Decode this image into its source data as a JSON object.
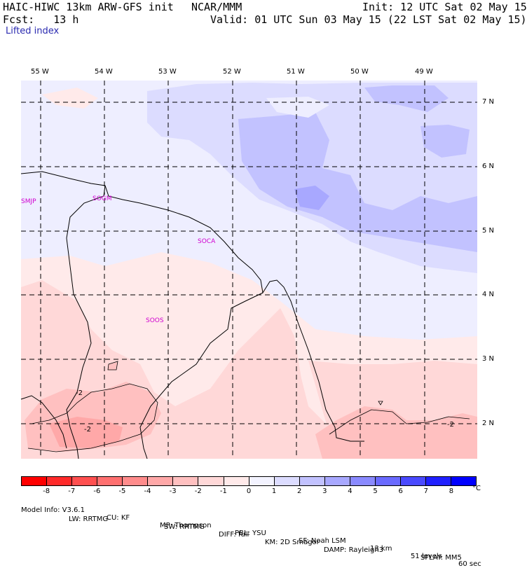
{
  "header": {
    "model": "HAIC-HIWC 13km ARW-GFS init",
    "org": "NCAR/MMM",
    "init": "Init: 12 UTC Sat 02 May 15",
    "fcst": "Fcst:   13 h",
    "valid": "Valid: 01 UTC Sun 03 May 15 (22 LST Sat 02 May 15)",
    "field": "Lifted index"
  },
  "longitudes": [
    "55 W",
    "54 W",
    "53 W",
    "52 W",
    "51 W",
    "50 W",
    "49 W"
  ],
  "latitudes": [
    "7 N",
    "6 N",
    "5 N",
    "4 N",
    "3 N",
    "2 N"
  ],
  "stations": [
    "SMJP",
    "SOGM",
    "SOCA",
    "SOOS"
  ],
  "contour_labels": [
    "-2",
    "-2",
    "-2"
  ],
  "colorbar": {
    "colors": [
      "#ff0000",
      "#ff2a2a",
      "#ff5050",
      "#ff7070",
      "#ff8c8c",
      "#ffa8a8",
      "#ffc0c0",
      "#ffd8d8",
      "#ffeaea",
      "#f3f3ff",
      "#dcdcff",
      "#c2c2ff",
      "#a8a8ff",
      "#8a8aff",
      "#6a6aff",
      "#4a4aff",
      "#2020ff",
      "#0000ff"
    ],
    "labels": [
      "-8",
      "-7",
      "-6",
      "-5",
      "-4",
      "-3",
      "-2",
      "-1",
      "0",
      "1",
      "2",
      "3",
      "4",
      "5",
      "6",
      "7",
      "8"
    ],
    "unit": "°C"
  },
  "footer": {
    "line1": [
      "Model Info: V3.6.1",
      "CU: KF",
      "MP: Thompson",
      "PBL: YSU",
      "SF: Noah LSM",
      "13 km",
      "51 levels",
      "60 sec"
    ],
    "line2": [
      "LW: RRTMG",
      "SW: RRTMG",
      "DIFF: full",
      "KM: 2D Smagor",
      "DAMP: Rayleigh3",
      "SFLAY: MM5"
    ]
  }
}
